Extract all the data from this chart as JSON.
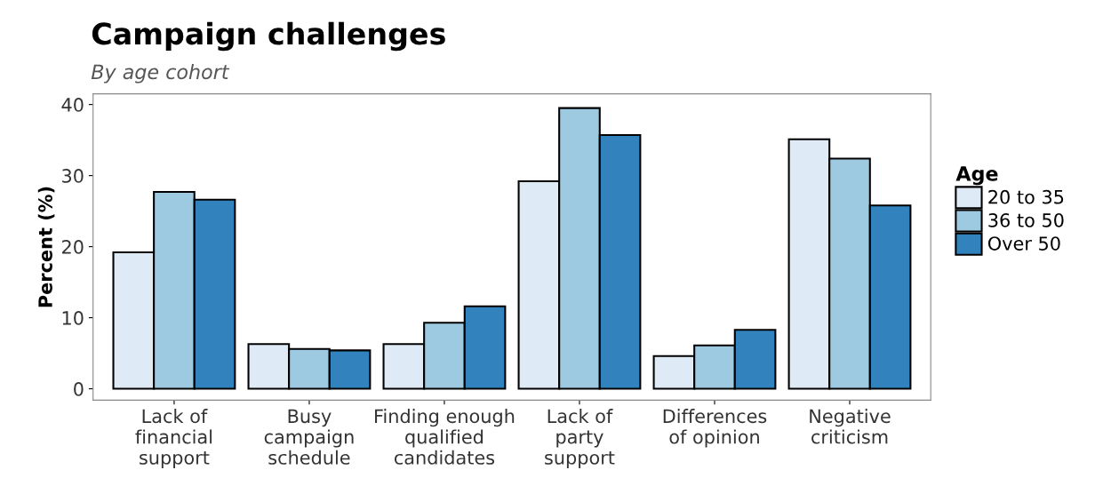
{
  "chart_data": {
    "type": "bar",
    "title": "Campaign challenges",
    "subtitle": "By age cohort",
    "ylabel": "Percent (%)",
    "legend_title": "Age",
    "categories": [
      "Lack of\nfinancial\nsupport",
      "Busy\ncampaign\nschedule",
      "Finding enough\nqualified\ncandidates",
      "Lack of\nparty\nsupport",
      "Differences\nof opinion",
      "Negative\ncriticism"
    ],
    "series": [
      {
        "name": "20 to 35",
        "color": "#deebf7",
        "values": [
          19.2,
          6.3,
          6.3,
          29.2,
          4.6,
          35.1
        ]
      },
      {
        "name": "36 to 50",
        "color": "#9ecae1",
        "values": [
          27.7,
          5.6,
          9.3,
          39.5,
          6.1,
          32.4
        ]
      },
      {
        "name": "Over 50",
        "color": "#3182bd",
        "values": [
          26.6,
          5.4,
          11.6,
          35.7,
          8.3,
          25.8
        ]
      }
    ],
    "ylim": [
      -1.6,
      41.5
    ],
    "yticks": [
      0,
      10,
      20,
      30,
      40
    ],
    "grid": false,
    "legend": "right"
  }
}
